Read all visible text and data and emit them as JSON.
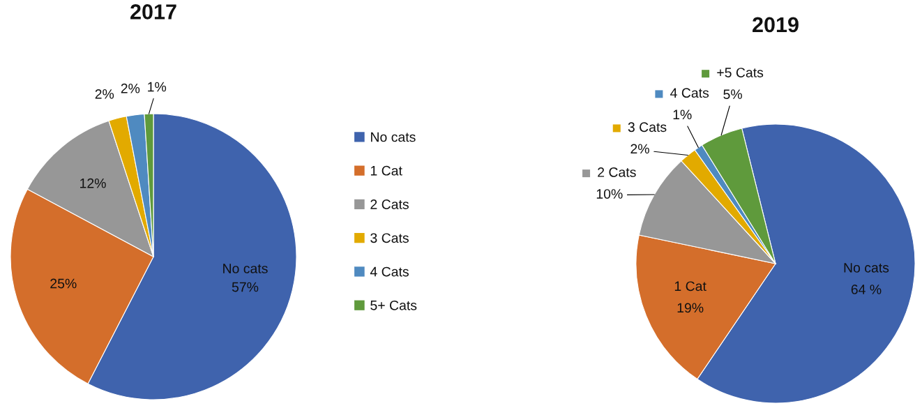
{
  "chart_data": [
    {
      "type": "pie",
      "title": "2017",
      "categories": [
        "No cats",
        "1 Cat",
        "2 Cats",
        "3 Cats",
        "4 Cats",
        "5+ Cats"
      ],
      "values": [
        57,
        25,
        12,
        2,
        2,
        1
      ],
      "colors": [
        "#3f63ad",
        "#d46e2b",
        "#979797",
        "#e2aa00",
        "#4f8ac0",
        "#5f9a3c"
      ],
      "value_labels": [
        "No cats\n57%",
        "25%",
        "12%",
        "2%",
        "2%",
        "1%"
      ],
      "legend": "right"
    },
    {
      "type": "pie",
      "title": "2019",
      "categories": [
        "No cats",
        "1 Cat",
        "2 Cats",
        "3 Cats",
        "4 Cats",
        "+5 Cats"
      ],
      "values": [
        64,
        19,
        10,
        2,
        1,
        5
      ],
      "colors": [
        "#3f63ad",
        "#d46e2b",
        "#979797",
        "#e2aa00",
        "#4f8ac0",
        "#5f9a3c"
      ],
      "value_labels": [
        "64 %",
        "19%",
        "10%",
        "2%",
        "1%",
        "5%"
      ],
      "legend": "top left"
    }
  ]
}
